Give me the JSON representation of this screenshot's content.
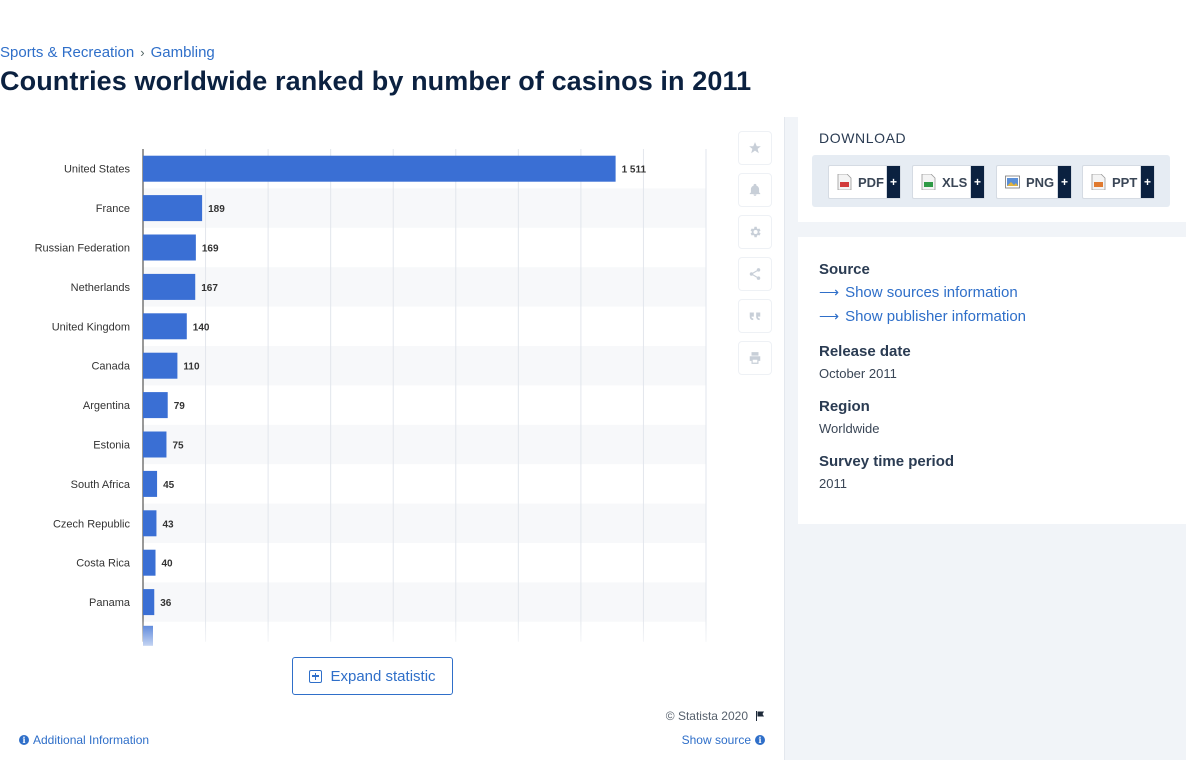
{
  "breadcrumb": {
    "item1": "Sports & Recreation",
    "item2": "Gambling",
    "separator": "›"
  },
  "page_title": "Countries worldwide ranked by number of casinos in 2011",
  "chart_data": {
    "type": "bar",
    "orientation": "horizontal",
    "title": "",
    "xlabel": "",
    "ylabel": "",
    "categories": [
      "United States",
      "France",
      "Russian Federation",
      "Netherlands",
      "United Kingdom",
      "Canada",
      "Argentina",
      "Estonia",
      "South Africa",
      "Czech Republic",
      "Costa Rica",
      "Panama"
    ],
    "values": [
      1511,
      189,
      169,
      167,
      140,
      110,
      79,
      75,
      45,
      43,
      40,
      36
    ],
    "value_labels": [
      "1 511",
      "189",
      "169",
      "167",
      "140",
      "110",
      "79",
      "75",
      "45",
      "43",
      "40",
      "36"
    ],
    "xlim": [
      0,
      1800
    ],
    "grid": true,
    "bar_color": "#3a6fd4"
  },
  "tools": {
    "star": "star-icon",
    "bell": "bell-icon",
    "gear": "gear-icon",
    "share": "share-icon",
    "quote": "quote-icon",
    "print": "print-icon"
  },
  "expand_label": "Expand statistic",
  "copyright": "© Statista 2020",
  "additional_info": "Additional Information",
  "show_source": "Show source",
  "download": {
    "title": "DOWNLOAD",
    "buttons": [
      {
        "label": "PDF",
        "plus": "+"
      },
      {
        "label": "XLS",
        "plus": "+"
      },
      {
        "label": "PNG",
        "plus": "+"
      },
      {
        "label": "PPT",
        "plus": "+"
      }
    ]
  },
  "meta": {
    "source_label": "Source",
    "show_sources": "Show sources information",
    "show_publisher": "Show publisher information",
    "release_label": "Release date",
    "release_value": "October 2011",
    "region_label": "Region",
    "region_value": "Worldwide",
    "survey_label": "Survey time period",
    "survey_value": "2011"
  }
}
